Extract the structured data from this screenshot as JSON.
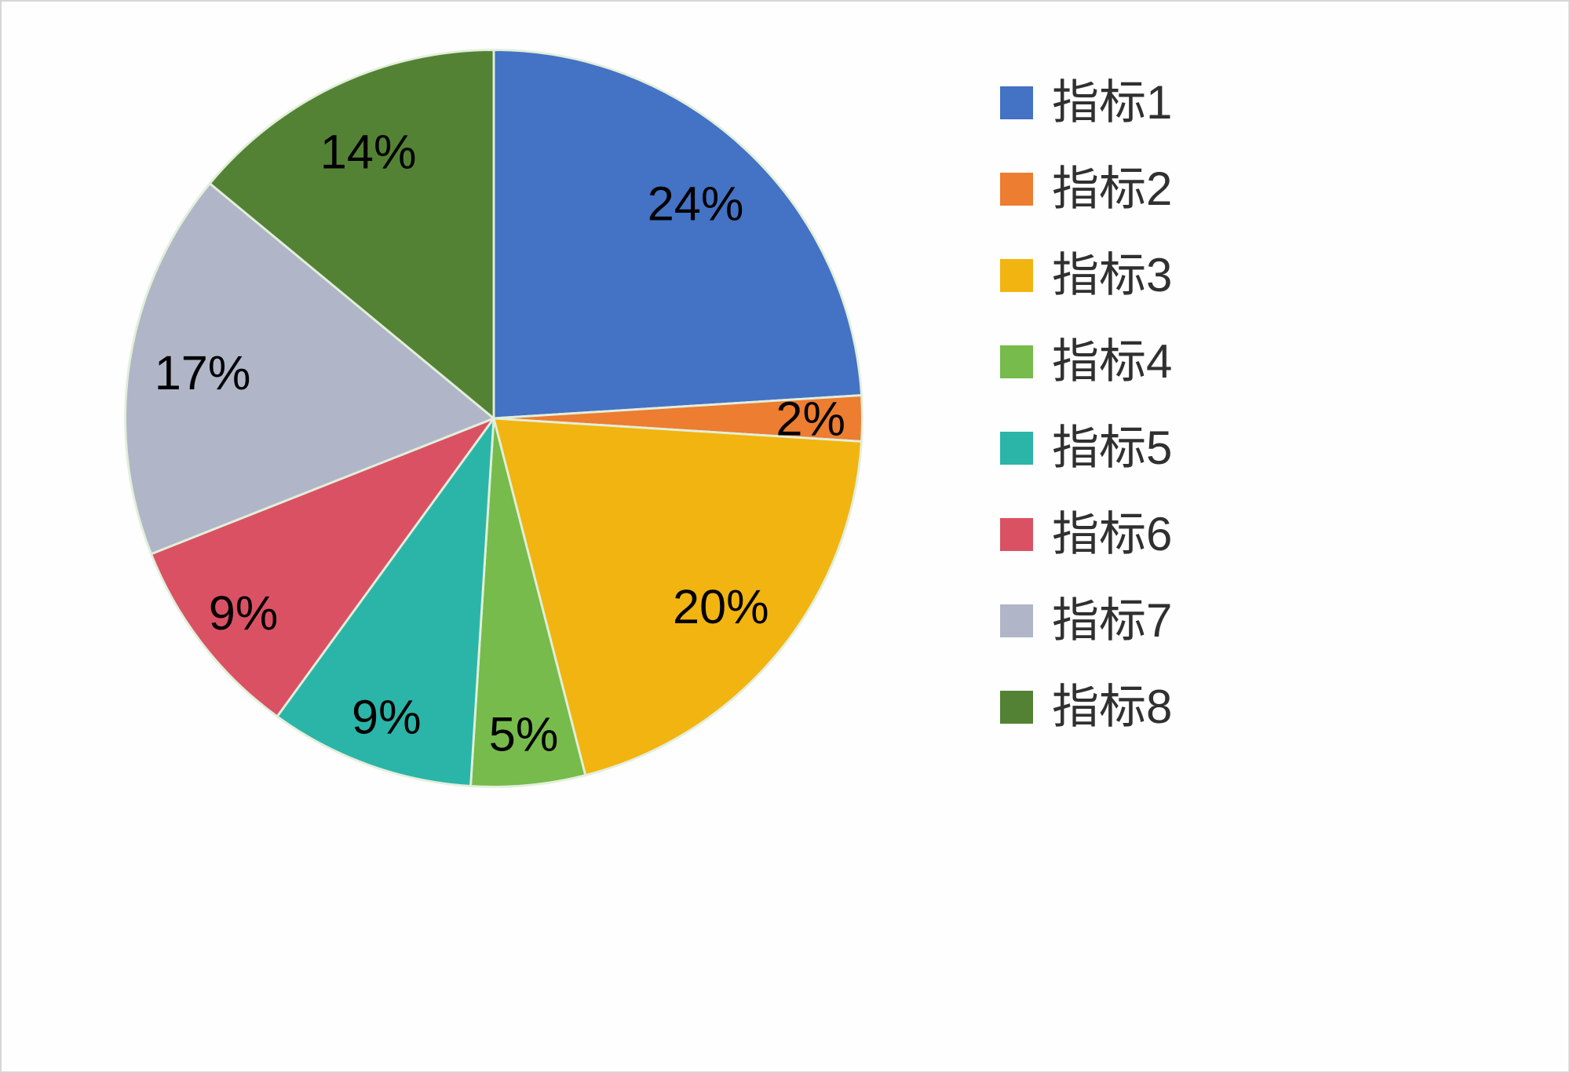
{
  "chart_data": {
    "type": "pie",
    "title": "",
    "categories": [
      "指标1",
      "指标2",
      "指标3",
      "指标4",
      "指标5",
      "指标6",
      "指标7",
      "指标8"
    ],
    "values": [
      24,
      2,
      20,
      5,
      9,
      9,
      17,
      14
    ],
    "data_labels": [
      "24%",
      "2%",
      "20%",
      "5%",
      "9%",
      "9%",
      "17%",
      "14%"
    ],
    "colors": [
      "#4472C4",
      "#ED7D31",
      "#F2B411",
      "#76BB4B",
      "#2BB5A9",
      "#DB5164",
      "#B0B6C8",
      "#548235"
    ],
    "slice_border_color": "#E2EFDA",
    "label_color": "#000000",
    "start_angle_deg": -90,
    "direction": "clockwise",
    "legend": {
      "position": "right",
      "labels": [
        "指标1",
        "指标2",
        "指标3",
        "指标4",
        "指标5",
        "指标6",
        "指标7",
        "指标8"
      ],
      "text_color": "#303030"
    }
  }
}
